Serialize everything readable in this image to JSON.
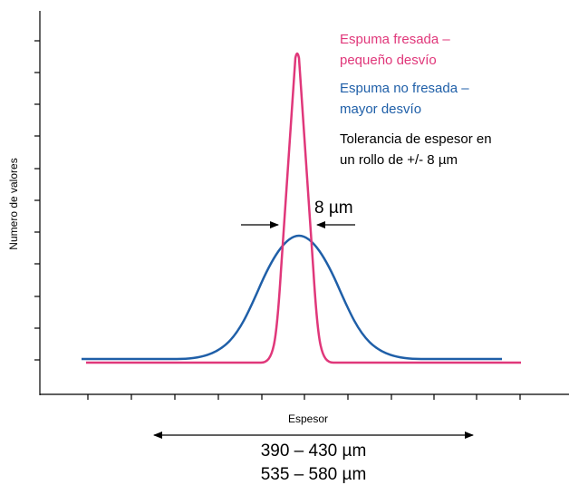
{
  "legend": {
    "milled": [
      "Espuma fresada –",
      "pequeño desvío"
    ],
    "unmilled": [
      "Espuma no fresada –",
      "mayor desvío"
    ],
    "tolerance": [
      "Tolerancia de espesor en",
      "un rollo de +/- 8 µm"
    ]
  },
  "annotation": "8 µm",
  "y_axis_label": "Numero de valores",
  "x_axis_label": "Espesor",
  "ranges": [
    "390 – 430 µm",
    "535 – 580 µm"
  ]
}
